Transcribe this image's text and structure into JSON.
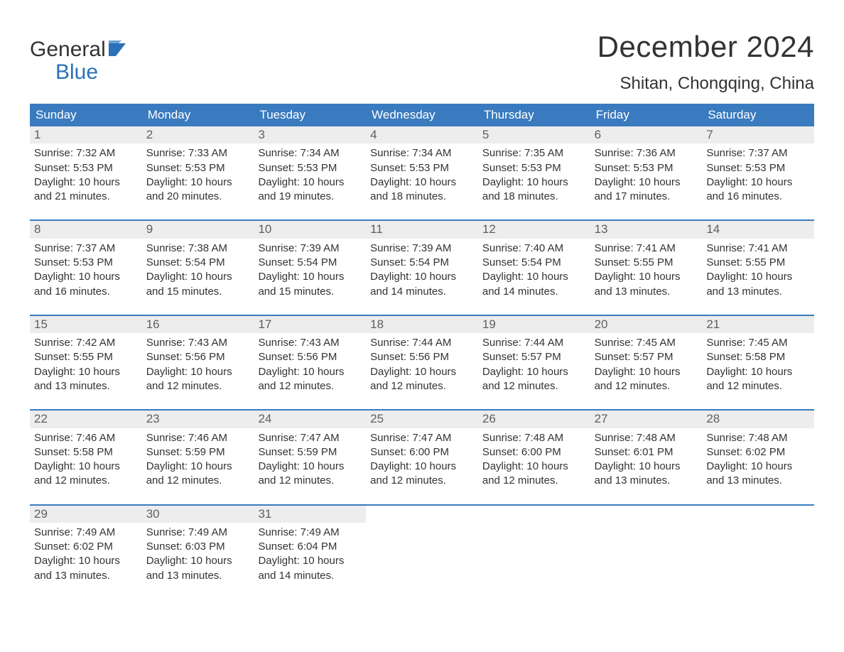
{
  "brand": {
    "top": "General",
    "bottom": "Blue",
    "color_primary": "#2a71b8",
    "color_text": "#333333"
  },
  "title": {
    "month": "December 2024",
    "location": "Shitan, Chongqing, China",
    "month_fontsize": 42,
    "location_fontsize": 24
  },
  "table": {
    "header_bg": "#3a7bbf",
    "header_fg": "#ffffff",
    "daynum_bg": "#ededed",
    "daynum_fg": "#5f5f5f",
    "body_fg": "#333333",
    "week_border": "#3a7bbf",
    "columns": [
      "Sunday",
      "Monday",
      "Tuesday",
      "Wednesday",
      "Thursday",
      "Friday",
      "Saturday"
    ]
  },
  "days": [
    {
      "n": "1",
      "sunrise": "7:32 AM",
      "sunset": "5:53 PM",
      "daylight": "10 hours and 21 minutes."
    },
    {
      "n": "2",
      "sunrise": "7:33 AM",
      "sunset": "5:53 PM",
      "daylight": "10 hours and 20 minutes."
    },
    {
      "n": "3",
      "sunrise": "7:34 AM",
      "sunset": "5:53 PM",
      "daylight": "10 hours and 19 minutes."
    },
    {
      "n": "4",
      "sunrise": "7:34 AM",
      "sunset": "5:53 PM",
      "daylight": "10 hours and 18 minutes."
    },
    {
      "n": "5",
      "sunrise": "7:35 AM",
      "sunset": "5:53 PM",
      "daylight": "10 hours and 18 minutes."
    },
    {
      "n": "6",
      "sunrise": "7:36 AM",
      "sunset": "5:53 PM",
      "daylight": "10 hours and 17 minutes."
    },
    {
      "n": "7",
      "sunrise": "7:37 AM",
      "sunset": "5:53 PM",
      "daylight": "10 hours and 16 minutes."
    },
    {
      "n": "8",
      "sunrise": "7:37 AM",
      "sunset": "5:53 PM",
      "daylight": "10 hours and 16 minutes."
    },
    {
      "n": "9",
      "sunrise": "7:38 AM",
      "sunset": "5:54 PM",
      "daylight": "10 hours and 15 minutes."
    },
    {
      "n": "10",
      "sunrise": "7:39 AM",
      "sunset": "5:54 PM",
      "daylight": "10 hours and 15 minutes."
    },
    {
      "n": "11",
      "sunrise": "7:39 AM",
      "sunset": "5:54 PM",
      "daylight": "10 hours and 14 minutes."
    },
    {
      "n": "12",
      "sunrise": "7:40 AM",
      "sunset": "5:54 PM",
      "daylight": "10 hours and 14 minutes."
    },
    {
      "n": "13",
      "sunrise": "7:41 AM",
      "sunset": "5:55 PM",
      "daylight": "10 hours and 13 minutes."
    },
    {
      "n": "14",
      "sunrise": "7:41 AM",
      "sunset": "5:55 PM",
      "daylight": "10 hours and 13 minutes."
    },
    {
      "n": "15",
      "sunrise": "7:42 AM",
      "sunset": "5:55 PM",
      "daylight": "10 hours and 13 minutes."
    },
    {
      "n": "16",
      "sunrise": "7:43 AM",
      "sunset": "5:56 PM",
      "daylight": "10 hours and 12 minutes."
    },
    {
      "n": "17",
      "sunrise": "7:43 AM",
      "sunset": "5:56 PM",
      "daylight": "10 hours and 12 minutes."
    },
    {
      "n": "18",
      "sunrise": "7:44 AM",
      "sunset": "5:56 PM",
      "daylight": "10 hours and 12 minutes."
    },
    {
      "n": "19",
      "sunrise": "7:44 AM",
      "sunset": "5:57 PM",
      "daylight": "10 hours and 12 minutes."
    },
    {
      "n": "20",
      "sunrise": "7:45 AM",
      "sunset": "5:57 PM",
      "daylight": "10 hours and 12 minutes."
    },
    {
      "n": "21",
      "sunrise": "7:45 AM",
      "sunset": "5:58 PM",
      "daylight": "10 hours and 12 minutes."
    },
    {
      "n": "22",
      "sunrise": "7:46 AM",
      "sunset": "5:58 PM",
      "daylight": "10 hours and 12 minutes."
    },
    {
      "n": "23",
      "sunrise": "7:46 AM",
      "sunset": "5:59 PM",
      "daylight": "10 hours and 12 minutes."
    },
    {
      "n": "24",
      "sunrise": "7:47 AM",
      "sunset": "5:59 PM",
      "daylight": "10 hours and 12 minutes."
    },
    {
      "n": "25",
      "sunrise": "7:47 AM",
      "sunset": "6:00 PM",
      "daylight": "10 hours and 12 minutes."
    },
    {
      "n": "26",
      "sunrise": "7:48 AM",
      "sunset": "6:00 PM",
      "daylight": "10 hours and 12 minutes."
    },
    {
      "n": "27",
      "sunrise": "7:48 AM",
      "sunset": "6:01 PM",
      "daylight": "10 hours and 13 minutes."
    },
    {
      "n": "28",
      "sunrise": "7:48 AM",
      "sunset": "6:02 PM",
      "daylight": "10 hours and 13 minutes."
    },
    {
      "n": "29",
      "sunrise": "7:49 AM",
      "sunset": "6:02 PM",
      "daylight": "10 hours and 13 minutes."
    },
    {
      "n": "30",
      "sunrise": "7:49 AM",
      "sunset": "6:03 PM",
      "daylight": "10 hours and 13 minutes."
    },
    {
      "n": "31",
      "sunrise": "7:49 AM",
      "sunset": "6:04 PM",
      "daylight": "10 hours and 14 minutes."
    }
  ],
  "labels": {
    "sunrise": "Sunrise: ",
    "sunset": "Sunset: ",
    "daylight": "Daylight: "
  },
  "layout": {
    "start_offset": 0,
    "weeks": 5,
    "cols": 7
  }
}
